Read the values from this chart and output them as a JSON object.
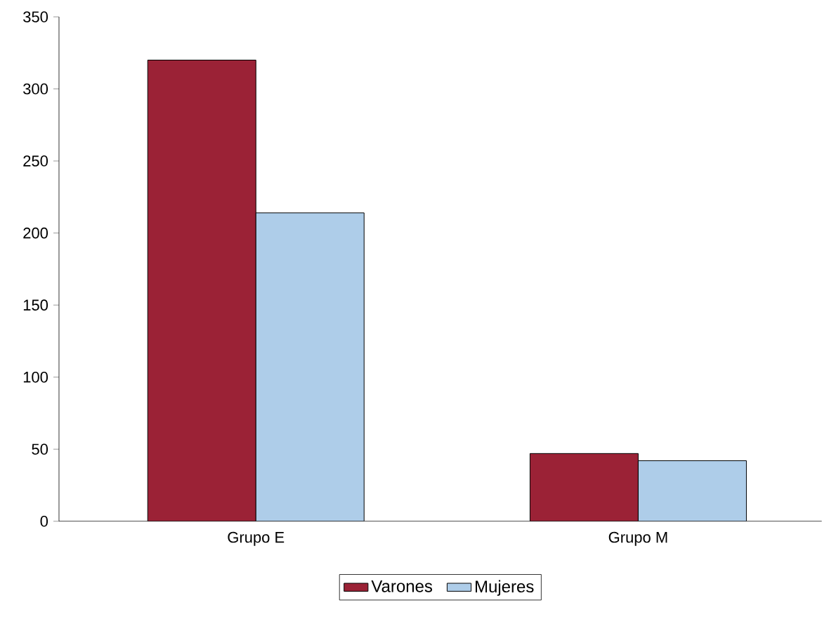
{
  "chart_data": {
    "type": "bar",
    "categories": [
      "Grupo E",
      "Grupo M"
    ],
    "series": [
      {
        "name": "Varones",
        "color": "#9b2236",
        "values": [
          320,
          47
        ]
      },
      {
        "name": "Mujeres",
        "color": "#aecde9",
        "values": [
          214,
          42
        ]
      }
    ],
    "ylim": [
      0,
      350
    ],
    "yticks": [
      0,
      50,
      100,
      150,
      200,
      250,
      300,
      350
    ],
    "grid": false,
    "legend": "bottom"
  }
}
